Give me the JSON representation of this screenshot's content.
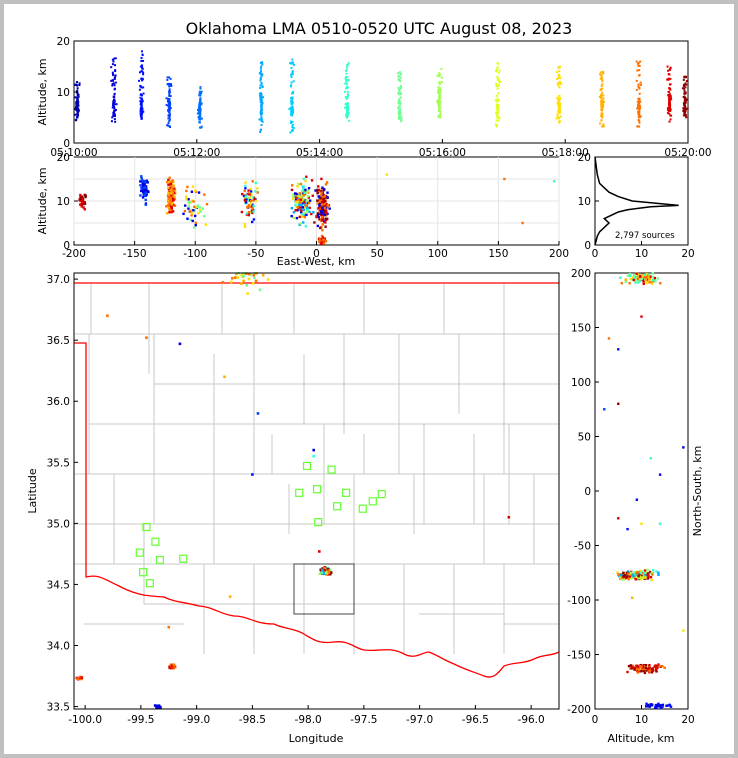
{
  "title": "Oklahoma LMA 0510-0520 UTC August 08, 2023",
  "source_count_label": "2,797 sources",
  "chart_data": [
    {
      "type": "scatter",
      "name": "time-altitude",
      "ylabel": "Altitude, km",
      "xlabel": "",
      "x_ticks": [
        "05:10:00",
        "05:12:00",
        "05:14:00",
        "05:16:00",
        "05:18:00",
        "05:20:00"
      ],
      "xlim_minutes": [
        0,
        10
      ],
      "ylim": [
        0,
        20
      ],
      "y_ticks": [
        0,
        10,
        20
      ],
      "color_scale": "time (blue to dark red)",
      "clusters": [
        {
          "t": 0.05,
          "alt": [
            5,
            12
          ],
          "color": "#0000b0"
        },
        {
          "t": 0.65,
          "alt": [
            4,
            17
          ],
          "color": "#0000e0"
        },
        {
          "t": 1.1,
          "alt": [
            6,
            18
          ],
          "color": "#0010ff"
        },
        {
          "t": 1.55,
          "alt": [
            3,
            13
          ],
          "color": "#0040ff"
        },
        {
          "t": 2.05,
          "alt": [
            3,
            11
          ],
          "color": "#0070ff"
        },
        {
          "t": 3.05,
          "alt": [
            2,
            16
          ],
          "color": "#00a8ff"
        },
        {
          "t": 3.55,
          "alt": [
            2,
            17
          ],
          "color": "#00d0ff"
        },
        {
          "t": 4.45,
          "alt": [
            4,
            16
          ],
          "color": "#30ffd0"
        },
        {
          "t": 5.3,
          "alt": [
            4,
            14
          ],
          "color": "#70ff90"
        },
        {
          "t": 5.95,
          "alt": [
            5,
            15
          ],
          "color": "#a0ff50"
        },
        {
          "t": 6.9,
          "alt": [
            3,
            16
          ],
          "color": "#e0ff20"
        },
        {
          "t": 7.9,
          "alt": [
            4,
            15
          ],
          "color": "#ffe000"
        },
        {
          "t": 8.6,
          "alt": [
            3,
            14
          ],
          "color": "#ffb000"
        },
        {
          "t": 9.2,
          "alt": [
            3,
            16
          ],
          "color": "#ff7000"
        },
        {
          "t": 9.7,
          "alt": [
            4,
            15
          ],
          "color": "#e00000"
        },
        {
          "t": 9.95,
          "alt": [
            5,
            13
          ],
          "color": "#900000"
        }
      ]
    },
    {
      "type": "scatter",
      "name": "east-west-altitude",
      "xlabel": "East-West, km",
      "ylabel": "Altitude, km",
      "xlim": [
        -200,
        200
      ],
      "x_ticks": [
        -200,
        -150,
        -100,
        -50,
        0,
        50,
        100,
        150,
        200
      ],
      "ylim": [
        0,
        20
      ],
      "y_ticks": [
        0,
        10,
        20
      ]
    },
    {
      "type": "line",
      "name": "altitude-histogram",
      "xlim": [
        0,
        20
      ],
      "x_ticks": [
        0,
        10,
        20
      ],
      "ylim": [
        0,
        20
      ],
      "y_ticks": [
        0,
        10,
        20
      ],
      "x": [
        0,
        0.5,
        1,
        2,
        3,
        2,
        4,
        5,
        7,
        9,
        12,
        18,
        8,
        5,
        3,
        2,
        1,
        0.5,
        0
      ],
      "y": [
        0,
        2,
        3,
        4,
        5,
        6,
        7,
        7.5,
        8,
        8.3,
        8.7,
        9,
        10,
        11,
        12,
        13,
        14,
        16,
        20
      ]
    },
    {
      "type": "scatter",
      "name": "plan-view",
      "xlabel": "Longitude",
      "ylabel": "Latitude",
      "xlim": [
        -100.1,
        -95.75
      ],
      "ylim": [
        33.48,
        37.05
      ],
      "x_ticks": [
        -100.0,
        -99.5,
        -99.0,
        -98.5,
        -98.0,
        -97.5,
        -97.0,
        -96.5,
        -96.0
      ],
      "y_ticks": [
        33.5,
        34.0,
        34.5,
        35.0,
        35.5,
        36.0,
        36.5,
        37.0
      ],
      "stations": [
        [
          -99.45,
          34.97
        ],
        [
          -99.51,
          34.76
        ],
        [
          -99.37,
          34.85
        ],
        [
          -99.48,
          34.6
        ],
        [
          -99.42,
          34.51
        ],
        [
          -99.33,
          34.7
        ],
        [
          -99.12,
          34.71
        ],
        [
          -98.01,
          35.47
        ],
        [
          -97.79,
          35.44
        ],
        [
          -97.92,
          35.28
        ],
        [
          -98.08,
          35.25
        ],
        [
          -97.66,
          35.25
        ],
        [
          -97.34,
          35.24
        ],
        [
          -97.42,
          35.18
        ],
        [
          -97.74,
          35.14
        ],
        [
          -97.51,
          35.12
        ],
        [
          -97.91,
          35.01
        ]
      ]
    },
    {
      "type": "scatter",
      "name": "altitude-north-south",
      "xlabel": "Altitude, km",
      "ylabel": "North-South, km",
      "xlim": [
        0,
        20
      ],
      "x_ticks": [
        0,
        10,
        20
      ],
      "ylim": [
        -200,
        200
      ],
      "y_ticks": [
        -200,
        -150,
        -100,
        -50,
        0,
        50,
        100,
        150,
        200
      ]
    }
  ]
}
